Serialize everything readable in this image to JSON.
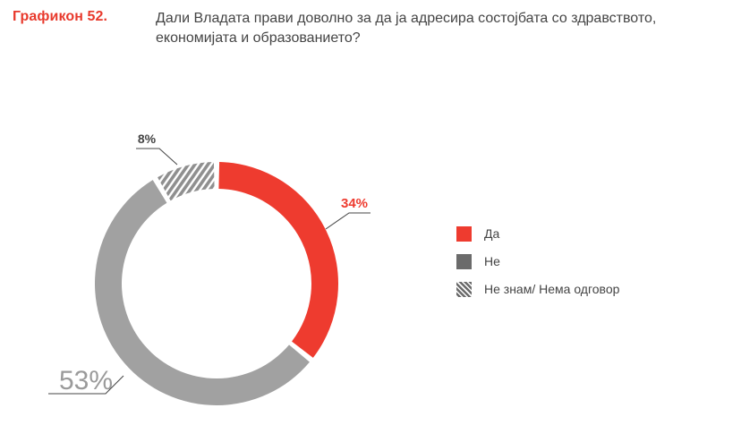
{
  "header": {
    "label": "Графикон 52.",
    "title_line1": "Дали Владата прави доволно за да ја адресира состојбата со здравството,",
    "title_line2": "економијата и образованието?"
  },
  "colors": {
    "yes": "#ee3b2f",
    "no": "#a1a1a1",
    "dont_know": "#8f8f8f",
    "legend_no": "#6b6b6b",
    "label_text": "#444444"
  },
  "chart_data": {
    "type": "pie",
    "variant": "donut",
    "title": "Дали Владата прави доволно за да ја адресира состојбата со здравството, економијата и образованието?",
    "categories": [
      "Да",
      "Не",
      "Не знам/ Нема одговор"
    ],
    "values": [
      34,
      53,
      8
    ],
    "unit": "%",
    "data_labels": [
      "34%",
      "53%",
      "8%"
    ],
    "legend": {
      "position": "right",
      "entries": [
        "Да",
        "Не",
        "Не знам/ Нема одговор"
      ]
    }
  }
}
